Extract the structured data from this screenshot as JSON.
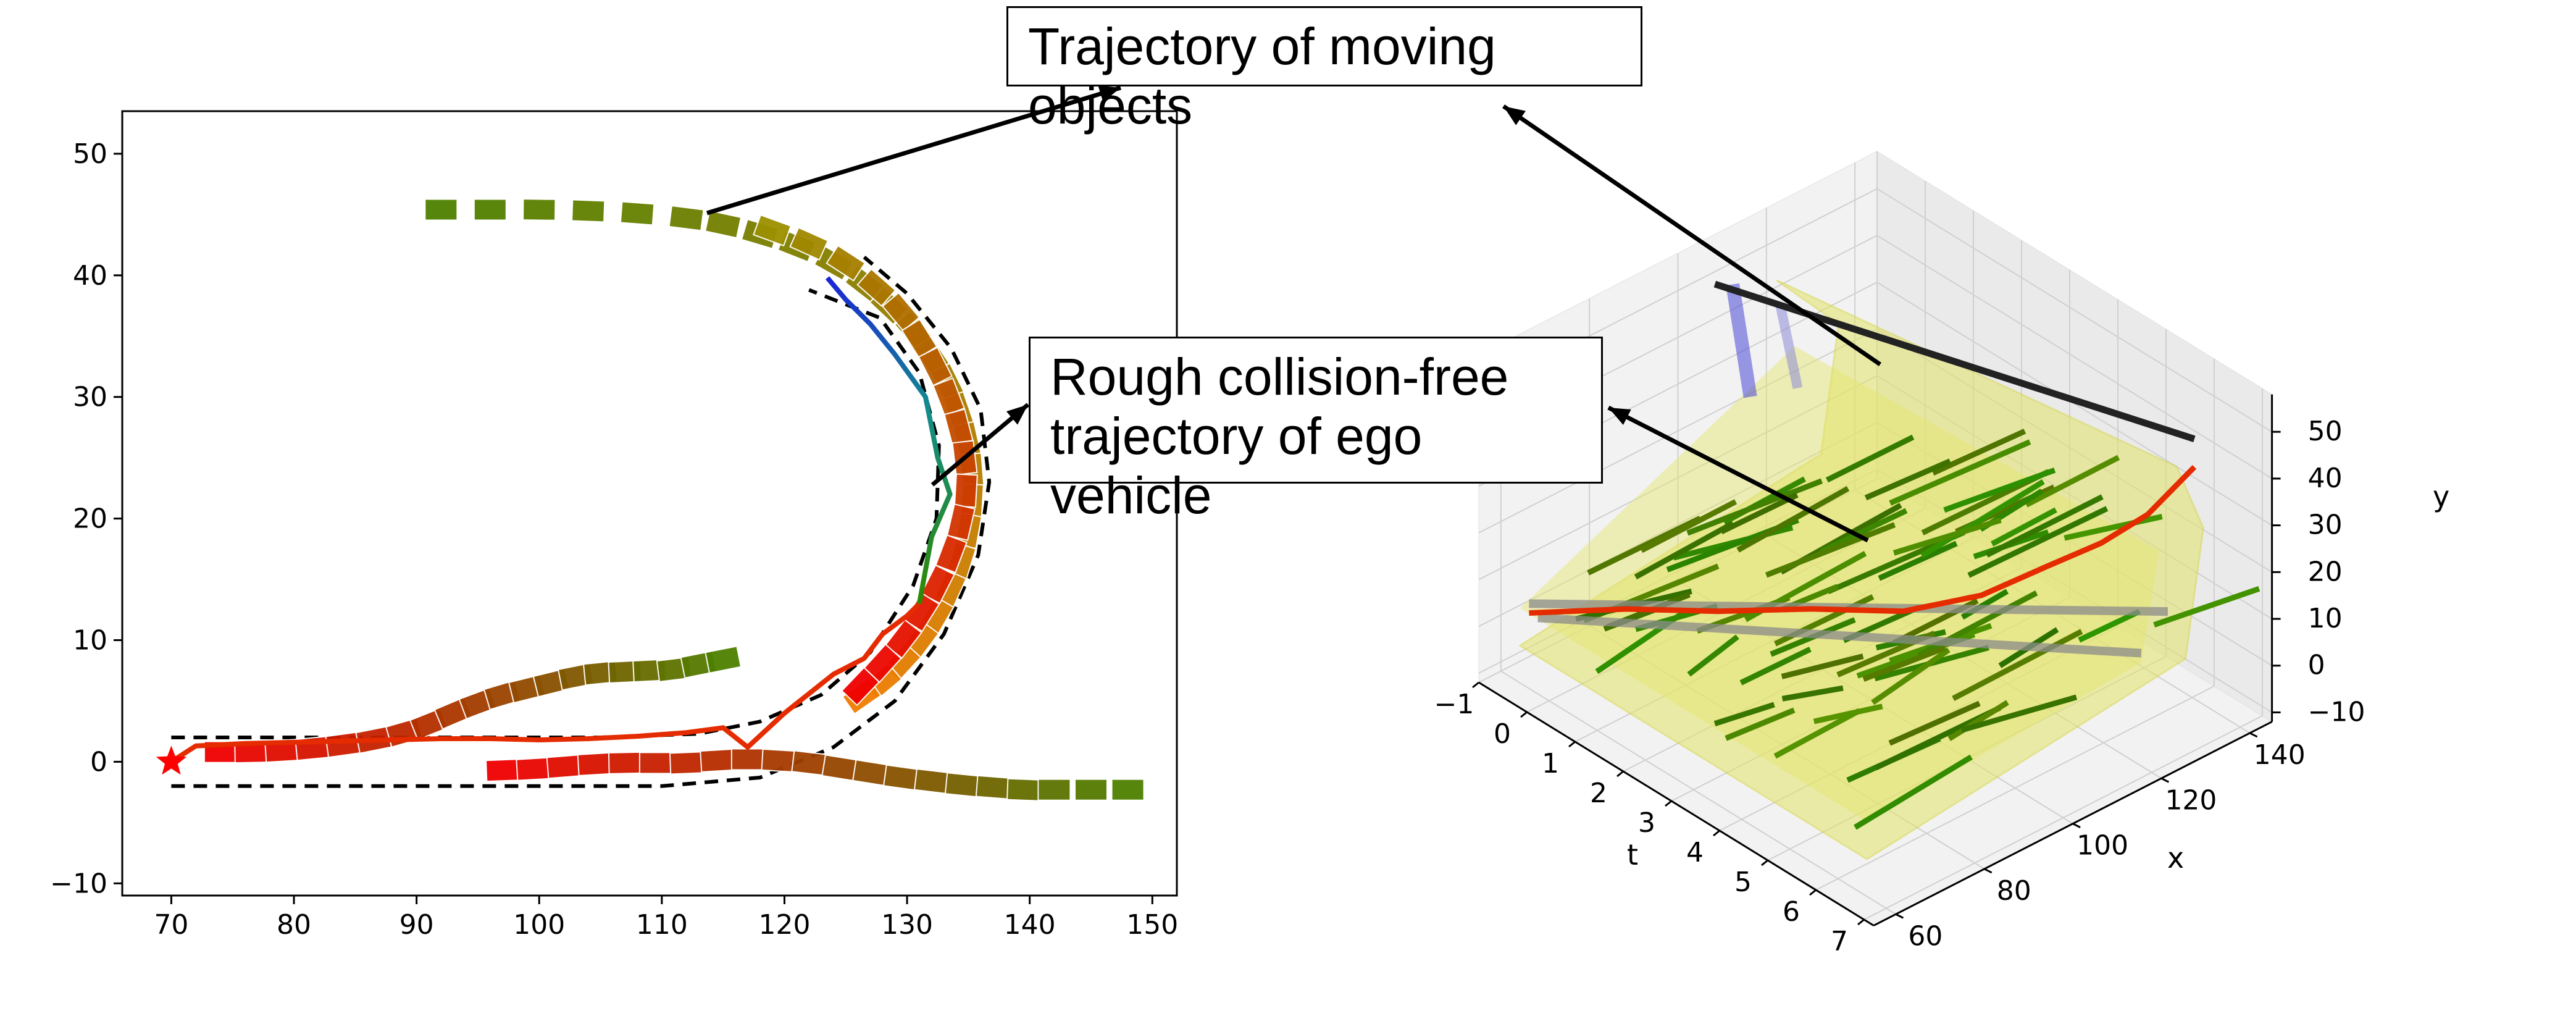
{
  "callouts": {
    "moving_objects": "Trajectory of moving objects",
    "ego_line1": "Rough collision-free",
    "ego_line2": "trajectory of ego",
    "ego_line3": "vehicle"
  },
  "colors": {
    "ego_path": "#e52b00",
    "boundary": "#000000",
    "object_blue": "#1a24d6",
    "object_teal": "#138c8c",
    "tube_fill": "#e4e46a"
  },
  "chart_data": [
    {
      "type": "line",
      "title": "",
      "xlabel": "",
      "ylabel": "",
      "xlim": [
        66,
        152
      ],
      "ylim": [
        -11,
        53.5
      ],
      "xticks": [
        70,
        80,
        90,
        100,
        110,
        120,
        130,
        140,
        150
      ],
      "yticks": [
        -10,
        0,
        10,
        20,
        30,
        40,
        50
      ],
      "grid": false,
      "series": [
        {
          "style": "boxes",
          "color_from": "#4d8000",
          "color_to": "#f07d00",
          "points": [
            [
              92,
              45.4
            ],
            [
              96,
              45.4
            ],
            [
              100,
              45.4
            ],
            [
              104,
              45.3
            ],
            [
              108,
              45.1
            ],
            [
              112,
              44.7
            ],
            [
              115,
              44.2
            ],
            [
              118,
              43.4
            ],
            [
              121,
              42.4
            ],
            [
              124,
              41
            ],
            [
              126.5,
              39.3
            ],
            [
              128.5,
              37.5
            ],
            [
              130.5,
              35.5
            ],
            [
              132,
              33.4
            ],
            [
              133.3,
              31.2
            ],
            [
              134.2,
              28.9
            ],
            [
              134.9,
              26.5
            ],
            [
              135.3,
              24
            ],
            [
              135.3,
              21.5
            ],
            [
              135,
              19
            ],
            [
              134.4,
              16.5
            ],
            [
              133.5,
              14.2
            ],
            [
              132.4,
              12
            ],
            [
              131.1,
              10
            ],
            [
              129.6,
              8.2
            ],
            [
              128,
              6.6
            ],
            [
              126.3,
              5.4
            ]
          ]
        },
        {
          "style": "boxes",
          "color_from": "#9c9000",
          "color_to": "#f00000",
          "points": [
            [
              119,
              43.7
            ],
            [
              122,
              42.6
            ],
            [
              125,
              41
            ],
            [
              127.5,
              39
            ],
            [
              129.5,
              37
            ],
            [
              131,
              34.8
            ],
            [
              132.3,
              32.5
            ],
            [
              133.4,
              30
            ],
            [
              134.2,
              27.5
            ],
            [
              134.7,
              25
            ],
            [
              134.8,
              22.3
            ],
            [
              134.4,
              19.7
            ],
            [
              133.6,
              17.1
            ],
            [
              132.5,
              14.6
            ],
            [
              131.2,
              12.3
            ],
            [
              129.7,
              10.1
            ],
            [
              128,
              8.1
            ],
            [
              126.2,
              6.2
            ]
          ]
        },
        {
          "style": "boxes",
          "color_from": "#f00000",
          "color_to": "#4d8000",
          "points": [
            [
              97,
              -0.7
            ],
            [
              99.5,
              -0.6
            ],
            [
              102,
              -0.4
            ],
            [
              104.5,
              -0.2
            ],
            [
              107,
              -0.1
            ],
            [
              109.5,
              -0.1
            ],
            [
              112,
              -0.1
            ],
            [
              114.5,
              0.1
            ],
            [
              117,
              0.2
            ],
            [
              119.5,
              0.1
            ],
            [
              122,
              -0.1
            ],
            [
              124.5,
              -0.5
            ],
            [
              127,
              -0.9
            ],
            [
              129.5,
              -1.3
            ],
            [
              132,
              -1.6
            ],
            [
              134.5,
              -1.9
            ],
            [
              137,
              -2.1
            ],
            [
              139.5,
              -2.3
            ],
            [
              142,
              -2.3
            ],
            [
              145,
              -2.3
            ],
            [
              148,
              -2.3
            ]
          ]
        },
        {
          "style": "boxes",
          "color_from": "#f00000",
          "color_to": "#4d8000",
          "points": [
            [
              74,
              0.8
            ],
            [
              76.5,
              0.8
            ],
            [
              79,
              0.9
            ],
            [
              81.5,
              1.1
            ],
            [
              84,
              1.4
            ],
            [
              86.5,
              1.8
            ],
            [
              89,
              2.4
            ],
            [
              91,
              3.1
            ],
            [
              93,
              4
            ],
            [
              95,
              4.8
            ],
            [
              97,
              5.5
            ],
            [
              99,
              6
            ],
            [
              101,
              6.5
            ],
            [
              103,
              7
            ],
            [
              105,
              7.3
            ],
            [
              107,
              7.4
            ],
            [
              109,
              7.5
            ],
            [
              111,
              7.6
            ],
            [
              113,
              8
            ],
            [
              115,
              8.4
            ]
          ]
        },
        {
          "name": "",
          "style": "line",
          "color": "#e52b00",
          "points": [
            [
              70,
              0
            ],
            [
              72,
              1.3
            ],
            [
              76,
              1.5
            ],
            [
              80,
              1.6
            ],
            [
              84,
              1.7
            ],
            [
              88,
              1.8
            ],
            [
              92,
              1.9
            ],
            [
              96,
              1.9
            ],
            [
              100,
              1.8
            ],
            [
              104,
              1.9
            ],
            [
              108,
              2.1
            ],
            [
              112,
              2.4
            ],
            [
              115,
              2.8
            ],
            [
              117,
              1.2
            ],
            [
              120,
              4
            ],
            [
              124,
              7.2
            ],
            [
              126.5,
              8.5
            ],
            [
              128,
              10.5
            ],
            [
              130,
              12
            ],
            [
              131,
              13
            ],
            [
              132,
              18.5
            ],
            [
              133.5,
              22
            ],
            [
              132.5,
              25
            ],
            [
              131.5,
              30
            ],
            [
              129,
              33.5
            ],
            [
              127,
              36
            ],
            [
              125,
              38
            ],
            [
              123.5,
              39.8
            ]
          ]
        },
        {
          "style": "boundary-dashed",
          "points": [
            [
              70,
              2
            ],
            [
              105,
              2
            ],
            [
              113,
              2.3
            ],
            [
              118,
              3.3
            ],
            [
              123,
              5.5
            ],
            [
              127,
              9
            ],
            [
              130.5,
              14.5
            ],
            [
              132.4,
              20
            ],
            [
              132.6,
              26
            ],
            [
              131,
              32
            ],
            [
              127.8,
              36.5
            ],
            [
              122,
              38.8
            ]
          ]
        },
        {
          "style": "boundary-dashed",
          "points": [
            [
              70,
              -2
            ],
            [
              110,
              -2
            ],
            [
              118,
              -1.3
            ],
            [
              124,
              1.2
            ],
            [
              129,
              5
            ],
            [
              133,
              10.5
            ],
            [
              135.8,
              17
            ],
            [
              136.7,
              23
            ],
            [
              136,
              29
            ],
            [
              133.6,
              34
            ],
            [
              130,
              38.5
            ],
            [
              126.5,
              41.5
            ]
          ]
        }
      ],
      "marker_star": [
        70,
        0
      ]
    },
    {
      "type": "line",
      "title": "",
      "xlabel": "x",
      "ylabel": "y",
      "tlabel": "t",
      "xlim": [
        55,
        145
      ],
      "ylim": [
        -12,
        58
      ],
      "tlim": [
        -1,
        7
      ],
      "xticks": [
        60,
        80,
        100,
        120,
        140
      ],
      "yticks": [
        -10,
        0,
        10,
        20,
        30,
        40,
        50
      ],
      "tticks": [
        -1,
        0,
        1,
        2,
        3,
        4,
        5,
        6,
        7
      ],
      "grid": true
    }
  ]
}
